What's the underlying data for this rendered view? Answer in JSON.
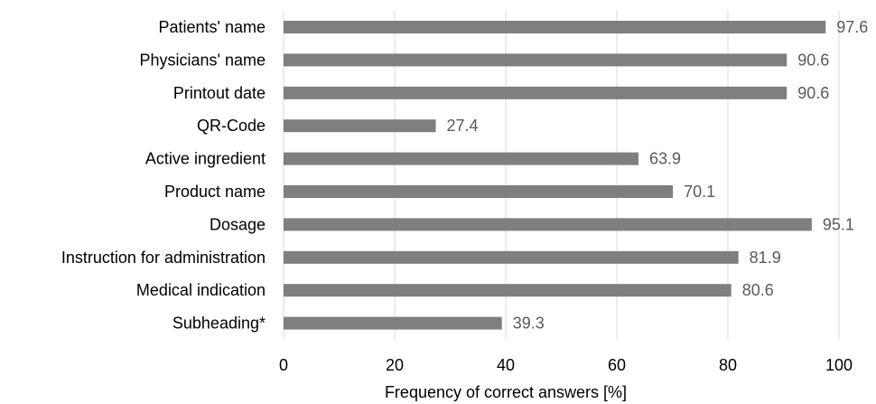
{
  "chart_data": {
    "type": "bar",
    "orientation": "horizontal",
    "categories": [
      "Patients' name",
      "Physicians' name",
      "Printout date",
      "QR-Code",
      "Active ingredient",
      "Product name",
      "Dosage",
      "Instruction for administration",
      "Medical indication",
      "Subheading*"
    ],
    "values": [
      97.6,
      90.6,
      90.6,
      27.4,
      63.9,
      70.1,
      95.1,
      81.9,
      80.6,
      39.3
    ],
    "value_labels": [
      "97.6",
      "90.6",
      "90.6",
      "27.4",
      "63.9",
      "70.1",
      "95.1",
      "81.9",
      "80.6",
      "39.3"
    ],
    "xlabel": "Frequency of correct answers [%]",
    "ylabel": "",
    "xlim": [
      0,
      100
    ],
    "xticks": [
      0,
      20,
      40,
      60,
      80,
      100
    ],
    "xtick_labels": [
      "0",
      "20",
      "40",
      "60",
      "80",
      "100"
    ],
    "grid": "vertical",
    "legend": "none",
    "bar_color": "#7f7f7f"
  }
}
